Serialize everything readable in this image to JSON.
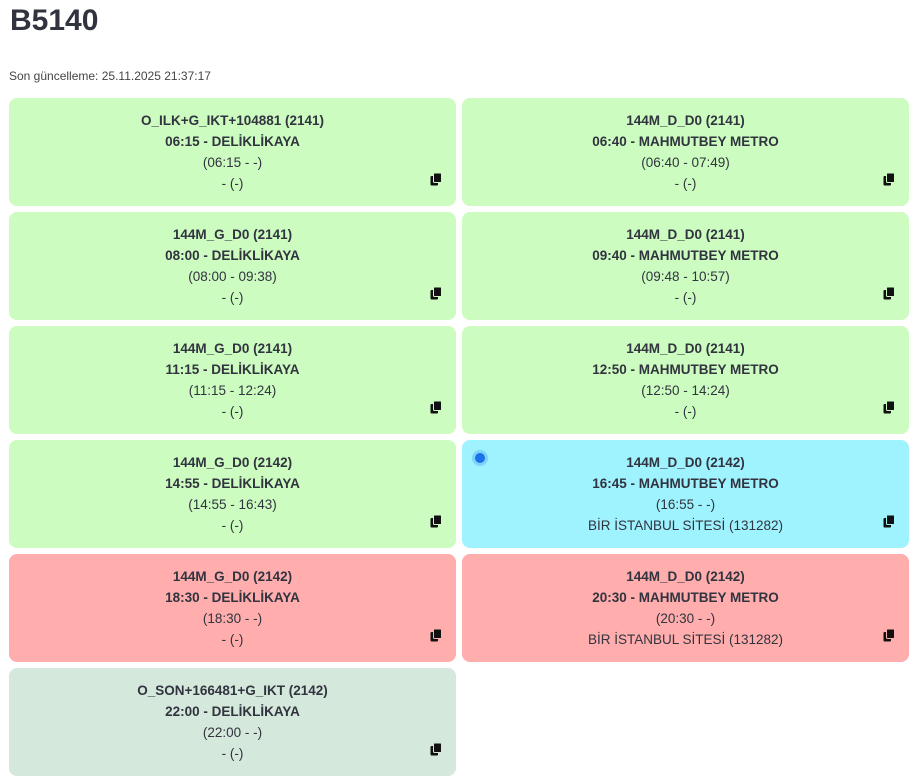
{
  "header": {
    "title": "B5140",
    "updated": "Son güncelleme: 25.11.2025 21:37:17"
  },
  "cards": [
    {
      "color": "#ccfcc0",
      "lines": [
        "O_ILK+G_IKT+104881 (2141)",
        "06:15 - DELİKLİKAYA",
        "(06:15 - -)",
        "- (-)"
      ]
    },
    {
      "color": "#ccfcc0",
      "lines": [
        "144M_D_D0 (2141)",
        "06:40 - MAHMUTBEY METRO",
        "(06:40 - 07:49)",
        "- (-)"
      ]
    },
    {
      "color": "#ccfcc0",
      "lines": [
        "144M_G_D0 (2141)",
        "08:00 - DELİKLİKAYA",
        "(08:00 - 09:38)",
        "- (-)"
      ]
    },
    {
      "color": "#ccfcc0",
      "lines": [
        "144M_D_D0 (2141)",
        "09:40 - MAHMUTBEY METRO",
        "(09:48 - 10:57)",
        "- (-)"
      ]
    },
    {
      "color": "#ccfcc0",
      "lines": [
        "144M_G_D0 (2141)",
        "11:15 - DELİKLİKAYA",
        "(11:15 - 12:24)",
        "- (-)"
      ]
    },
    {
      "color": "#ccfcc0",
      "lines": [
        "144M_D_D0 (2141)",
        "12:50 - MAHMUTBEY METRO",
        "(12:50 - 14:24)",
        "- (-)"
      ]
    },
    {
      "color": "#ccfcc0",
      "lines": [
        "144M_G_D0 (2142)",
        "14:55 - DELİKLİKAYA",
        "(14:55 - 16:43)",
        "- (-)"
      ]
    },
    {
      "color": "#9ff3fe",
      "live": true,
      "lines": [
        "144M_D_D0 (2142)",
        "16:45 - MAHMUTBEY METRO",
        "(16:55 - -)",
        "BİR İSTANBUL SİTESİ (131282)"
      ]
    },
    {
      "color": "#ffadad",
      "lines": [
        "144M_G_D0 (2142)",
        "18:30 - DELİKLİKAYA",
        "(18:30 - -)",
        "- (-)"
      ]
    },
    {
      "color": "#ffadad",
      "lines": [
        "144M_D_D0 (2142)",
        "20:30 - MAHMUTBEY METRO",
        "(20:30 - -)",
        "BİR İSTANBUL SİTESİ (131282)"
      ]
    },
    {
      "color": "#d5e8dc",
      "lines": [
        "O_SON+166481+G_IKT (2142)",
        "22:00 - DELİKLİKAYA",
        "(22:00 - -)",
        "- (-)"
      ]
    }
  ]
}
